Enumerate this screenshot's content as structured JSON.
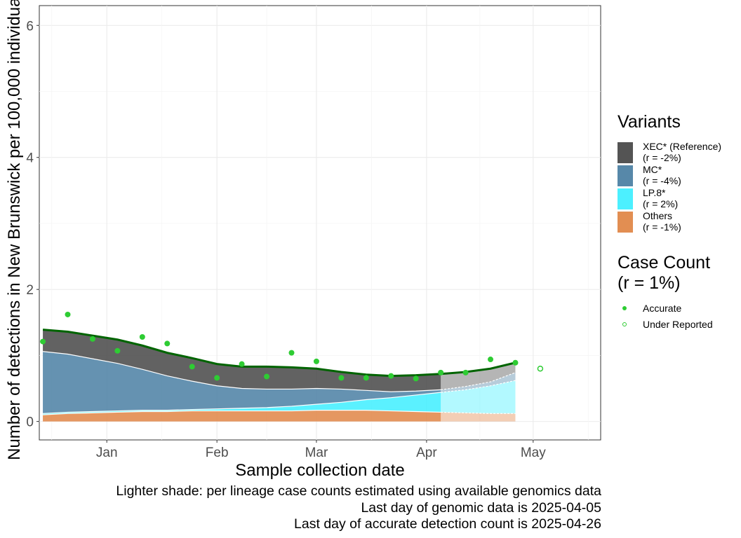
{
  "chart_data": {
    "type": "area",
    "xlabel": "Sample collection date",
    "ylabel": "Number of detections in New Brunswick per 100,000 individuals",
    "x_tick_labels": [
      "Jan",
      "Feb",
      "Mar",
      "Apr",
      "May"
    ],
    "x_tick_dates": [
      "2025-01-01",
      "2025-02-01",
      "2025-03-01",
      "2025-04-01",
      "2025-05-01"
    ],
    "xlim": [
      "2024-12-13",
      "2025-05-20"
    ],
    "y_ticks": [
      0,
      2,
      4,
      6
    ],
    "ylim": [
      -0.28,
      6.3
    ],
    "grid": true,
    "x": [
      "2024-12-14",
      "2024-12-21",
      "2024-12-28",
      "2025-01-04",
      "2025-01-11",
      "2025-01-18",
      "2025-01-25",
      "2025-02-01",
      "2025-02-08",
      "2025-02-15",
      "2025-02-22",
      "2025-03-01",
      "2025-03-08",
      "2025-03-15",
      "2025-03-22",
      "2025-03-29",
      "2025-04-05",
      "2025-04-12",
      "2025-04-19",
      "2025-04-26"
    ],
    "series": [
      {
        "name": "Others",
        "color": "#E08545",
        "values": [
          0.1,
          0.12,
          0.13,
          0.14,
          0.15,
          0.15,
          0.16,
          0.16,
          0.16,
          0.16,
          0.16,
          0.17,
          0.17,
          0.17,
          0.16,
          0.15,
          0.14,
          0.13,
          0.12,
          0.12
        ]
      },
      {
        "name": "LP.8*",
        "color": "#3EEFFF",
        "values": [
          0.02,
          0.02,
          0.02,
          0.02,
          0.02,
          0.02,
          0.02,
          0.03,
          0.04,
          0.05,
          0.07,
          0.09,
          0.12,
          0.16,
          0.2,
          0.25,
          0.3,
          0.35,
          0.42,
          0.5
        ]
      },
      {
        "name": "MC*",
        "color": "#4A7FA3",
        "values": [
          0.94,
          0.88,
          0.8,
          0.72,
          0.62,
          0.52,
          0.43,
          0.35,
          0.3,
          0.28,
          0.26,
          0.24,
          0.2,
          0.14,
          0.09,
          0.06,
          0.04,
          0.05,
          0.06,
          0.12
        ]
      },
      {
        "name": "XEC* (Reference)",
        "color": "#474747",
        "values": [
          0.33,
          0.34,
          0.35,
          0.36,
          0.36,
          0.35,
          0.35,
          0.33,
          0.33,
          0.34,
          0.33,
          0.3,
          0.26,
          0.24,
          0.24,
          0.24,
          0.24,
          0.22,
          0.2,
          0.15
        ]
      }
    ],
    "total_line": {
      "color": "#006400",
      "values": [
        1.39,
        1.36,
        1.3,
        1.24,
        1.15,
        1.04,
        0.96,
        0.87,
        0.83,
        0.83,
        0.82,
        0.8,
        0.75,
        0.71,
        0.69,
        0.7,
        0.72,
        0.75,
        0.8,
        0.89
      ]
    },
    "genomic_cutoff": "2025-04-05",
    "case_counts": {
      "accurate": {
        "x": [
          "2024-12-14",
          "2024-12-21",
          "2024-12-28",
          "2025-01-04",
          "2025-01-11",
          "2025-01-18",
          "2025-01-25",
          "2025-02-01",
          "2025-02-08",
          "2025-02-15",
          "2025-02-22",
          "2025-03-01",
          "2025-03-08",
          "2025-03-15",
          "2025-03-22",
          "2025-03-29",
          "2025-04-05",
          "2025-04-12",
          "2025-04-19",
          "2025-04-26"
        ],
        "values": [
          1.21,
          1.62,
          1.25,
          1.07,
          1.28,
          1.18,
          0.83,
          0.66,
          0.87,
          0.68,
          1.04,
          0.91,
          0.66,
          0.66,
          0.69,
          0.65,
          0.74,
          0.74,
          0.94,
          0.89
        ]
      },
      "under_reported": {
        "x": [
          "2025-05-03"
        ],
        "values": [
          0.8
        ]
      }
    },
    "point_color": "#2ECC33"
  },
  "legend": {
    "variants_title": "Variants",
    "variants": [
      {
        "label": "XEC* (Reference)",
        "sub": "(r = -2%)",
        "color": "#474747"
      },
      {
        "label": "MC*",
        "sub": "(r = -4%)",
        "color": "#4A7FA3"
      },
      {
        "label": "LP.8*",
        "sub": "(r = 2%)",
        "color": "#3EEFFF"
      },
      {
        "label": "Others",
        "sub": "(r = -1%)",
        "color": "#E08545"
      }
    ],
    "case_count_title": "Case Count",
    "case_count_sub": "(r = 1%)",
    "case_count_items": [
      {
        "label": "Accurate",
        "kind": "filled"
      },
      {
        "label": "Under Reported",
        "kind": "hollow"
      }
    ]
  },
  "caption": {
    "line1": "Lighter shade: per lineage case counts estimated using available genomics data",
    "line2": "Last day of genomic data is 2025-04-05",
    "line3": "Last day of accurate detection count is 2025-04-26"
  }
}
